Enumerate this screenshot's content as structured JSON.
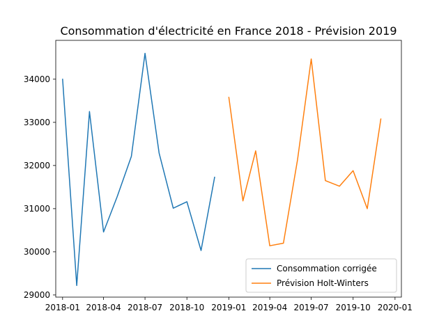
{
  "chart_data": {
    "type": "line",
    "title": "Consommation d'électricité en France 2018 - Prévision 2019",
    "xlabel": "",
    "ylabel": "",
    "ylim": [
      28950,
      34900
    ],
    "xlim": [
      "2017-12-17",
      "2020-01-15"
    ],
    "grid": false,
    "legend_position": "lower-right",
    "x_ticks": [
      "2018-01",
      "2018-04",
      "2018-07",
      "2018-10",
      "2019-01",
      "2019-04",
      "2019-07",
      "2019-10",
      "2020-01"
    ],
    "y_ticks": [
      29000,
      30000,
      31000,
      32000,
      33000,
      34000
    ],
    "series": [
      {
        "name": "Consommation corrigée",
        "color": "#1f77b4",
        "x": [
          "2018-01-01",
          "2018-02-01",
          "2018-03-01",
          "2018-04-01",
          "2018-05-01",
          "2018-06-01",
          "2018-07-01",
          "2018-08-01",
          "2018-09-01",
          "2018-10-01",
          "2018-11-01",
          "2018-12-01"
        ],
        "values": [
          34010,
          29220,
          33250,
          30460,
          31280,
          32210,
          34600,
          32290,
          31010,
          31160,
          30030,
          31740
        ]
      },
      {
        "name": "Prévision Holt-Winters",
        "color": "#ff7f0e",
        "x": [
          "2019-01-01",
          "2019-02-01",
          "2019-03-01",
          "2019-04-01",
          "2019-05-01",
          "2019-06-01",
          "2019-07-01",
          "2019-08-01",
          "2019-09-01",
          "2019-10-01",
          "2019-11-01",
          "2019-12-01"
        ],
        "values": [
          33590,
          31180,
          32340,
          30140,
          30200,
          32140,
          34470,
          31650,
          31520,
          31880,
          31000,
          33090
        ]
      }
    ]
  }
}
